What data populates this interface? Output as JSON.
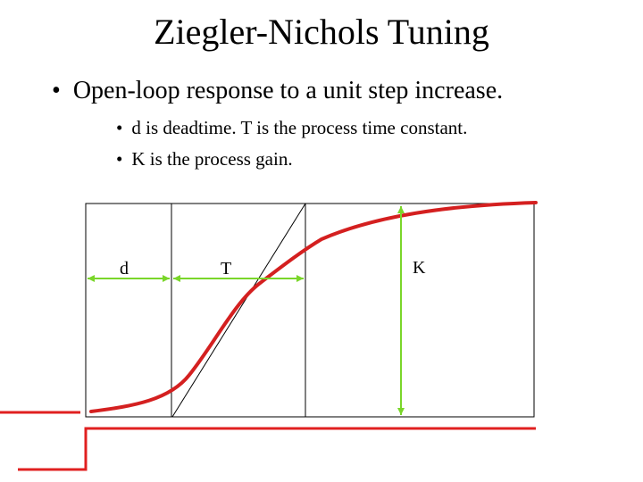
{
  "slide": {
    "title": "Ziegler-Nichols Tuning",
    "bullets": [
      "Open-loop response to a unit step increase.",
      "d is deadtime.  T is the process time constant.",
      "K is the process gain."
    ],
    "bullet_symbol": "•"
  },
  "diagram": {
    "labels": {
      "deadtime": "d",
      "time_constant": "T",
      "gain": "K"
    },
    "colors": {
      "response_curve": "#d42020",
      "step_input": "#e02020",
      "dimension_arrows": "#7ad62a",
      "lines": "#000000"
    }
  }
}
